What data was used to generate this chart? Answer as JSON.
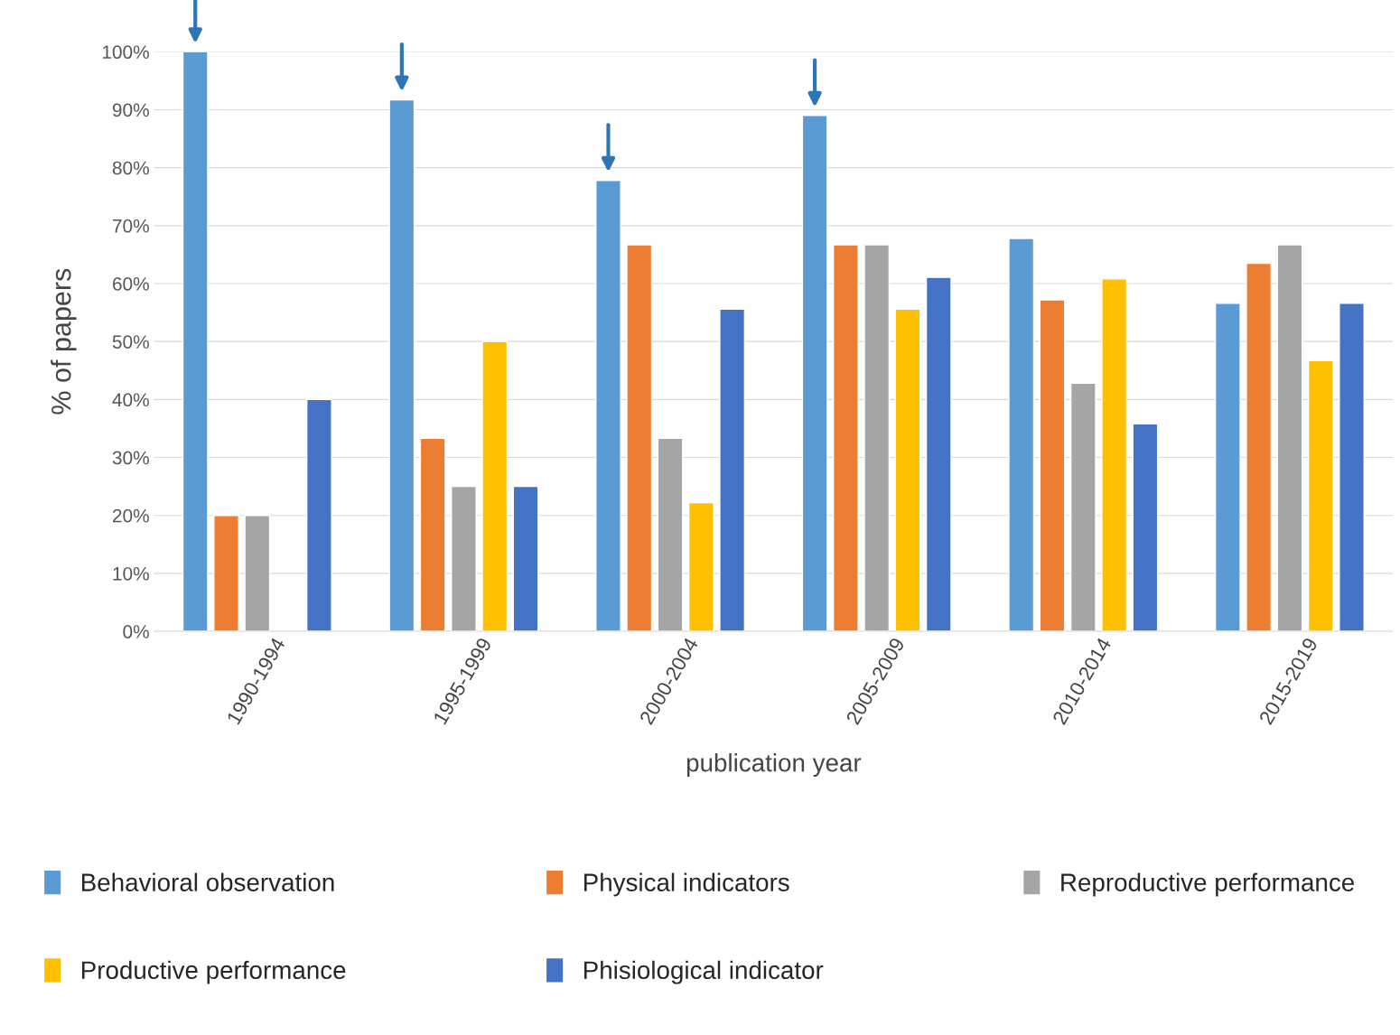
{
  "chart_data": {
    "type": "bar",
    "xlabel": "publication year",
    "ylabel": "% of papers",
    "categories": [
      "1990-1994",
      "1995-1999",
      "2000-2004",
      "2005-2009",
      "2010-2014",
      "2015-2019"
    ],
    "series": [
      {
        "name": "Behavioral observation",
        "color": "#5b9bd5",
        "values": [
          100,
          91.7,
          77.8,
          89,
          67.8,
          56.6
        ]
      },
      {
        "name": "Physical indicators",
        "color": "#ed7d31",
        "values": [
          20,
          33.3,
          66.7,
          66.7,
          57.2,
          63.5
        ]
      },
      {
        "name": "Reproductive performance",
        "color": "#a5a5a5",
        "values": [
          20,
          25,
          33.3,
          66.7,
          42.8,
          66.7
        ]
      },
      {
        "name": "Productive performance",
        "color": "#ffc000",
        "values": [
          null,
          50,
          22.2,
          55.6,
          60.8,
          46.7
        ]
      },
      {
        "name": "Phisiological indicator",
        "color": "#4472c4",
        "values": [
          40,
          25,
          55.6,
          61.1,
          35.8,
          56.6
        ]
      }
    ],
    "ylim": [
      0,
      100
    ],
    "yticks": [
      {
        "value": 0,
        "label": "0%"
      },
      {
        "value": 10,
        "label": "10%"
      },
      {
        "value": 20,
        "label": "20%"
      },
      {
        "value": 30,
        "label": "30%"
      },
      {
        "value": 40,
        "label": "40%"
      },
      {
        "value": 50,
        "label": "50%"
      },
      {
        "value": 60,
        "label": "60%"
      },
      {
        "value": 70,
        "label": "70%"
      },
      {
        "value": 80,
        "label": "80%"
      },
      {
        "value": 90,
        "label": "90%"
      },
      {
        "value": 100,
        "label": "100%"
      }
    ],
    "grid": "y",
    "legend": "bottom"
  }
}
